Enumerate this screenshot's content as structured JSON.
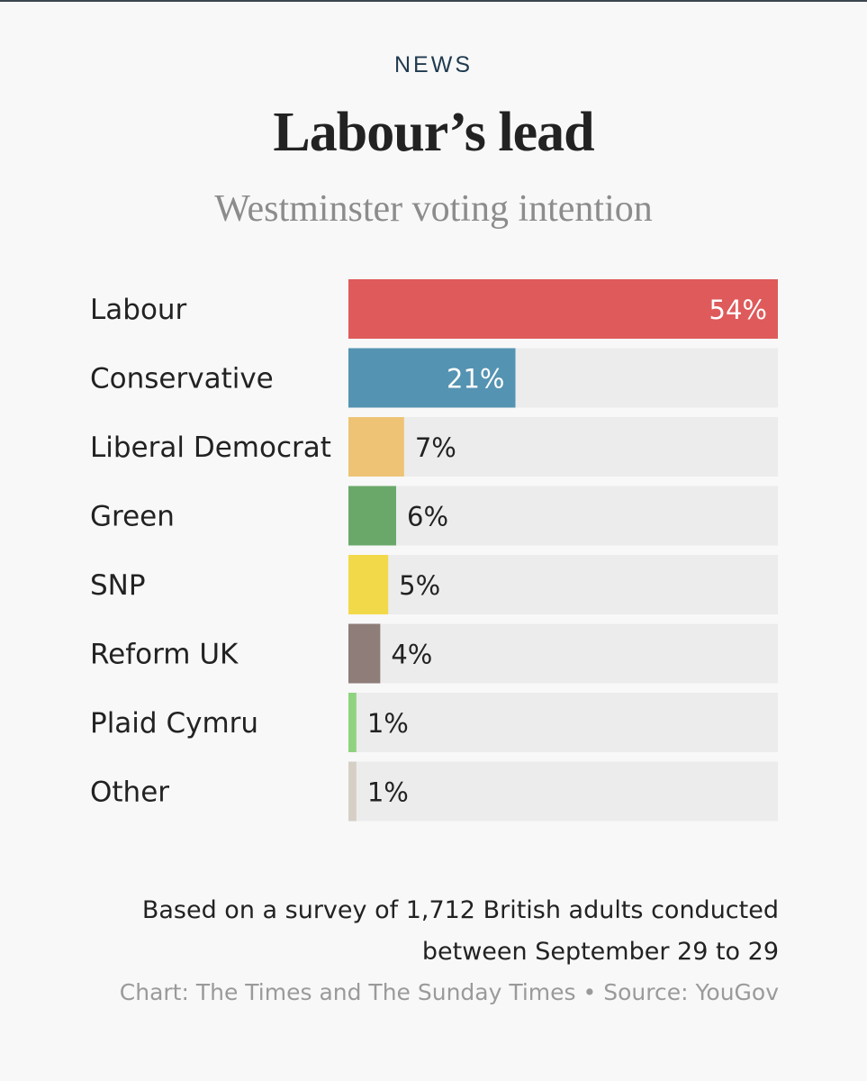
{
  "header": {
    "kicker": "NEWS",
    "title": "Labour’s lead",
    "subtitle": "Westminster voting intention"
  },
  "chart_data": {
    "type": "bar",
    "orientation": "horizontal",
    "title": "Labour’s lead",
    "subtitle": "Westminster voting intention",
    "categories": [
      "Labour",
      "Conservative",
      "Liberal Democrat",
      "Green",
      "SNP",
      "Reform UK",
      "Plaid Cymru",
      "Other"
    ],
    "values": [
      54,
      21,
      7,
      6,
      5,
      4,
      1,
      1
    ],
    "value_labels": [
      "54%",
      "21%",
      "7%",
      "6%",
      "5%",
      "4%",
      "1%",
      "1%"
    ],
    "colors": [
      "#df5a5a",
      "#5593b2",
      "#eec375",
      "#6aa86a",
      "#f2d94a",
      "#8e7d78",
      "#8fd37f",
      "#d6cfc6"
    ],
    "track_color": "#ececec",
    "xlim": [
      0,
      54
    ],
    "grid": false,
    "legend": "none"
  },
  "footer": {
    "note": "Based on a survey of 1,712 British adults conducted between September 29 to 29",
    "credit": "Chart: The Times and The Sunday Times • Source: YouGov"
  }
}
